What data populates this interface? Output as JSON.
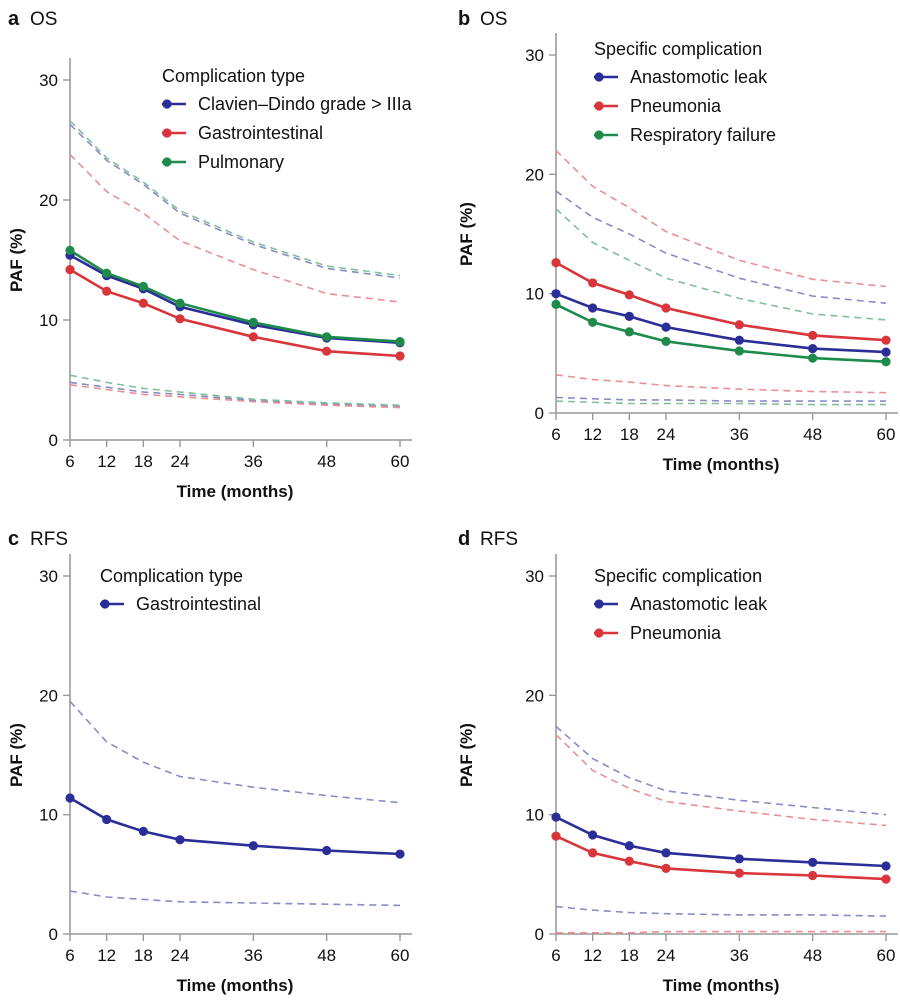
{
  "colors": {
    "blue": "#2b2e96",
    "red": "#d8363a",
    "green": "#1e8a4c",
    "axis": "#999999",
    "text": "#111111"
  },
  "chart_data": [
    {
      "type": "line",
      "panel_letter": "a",
      "panel_title": "OS",
      "legend_title": "Complication type",
      "xlabel": "Time (months)",
      "ylabel": "PAF (%)",
      "x": [
        6,
        12,
        18,
        24,
        36,
        48,
        60
      ],
      "xlim": [
        6,
        60
      ],
      "ylim": [
        0,
        30
      ],
      "yticks": [
        0,
        10,
        20,
        30
      ],
      "series": [
        {
          "name": "Clavien–Dindo grade > IIIa",
          "color": "#2b2e96",
          "values": [
            15.4,
            13.7,
            12.6,
            11.1,
            9.6,
            8.5,
            8.1
          ],
          "lower": [
            4.8,
            4.4,
            4.0,
            3.8,
            3.3,
            3.0,
            2.8
          ],
          "upper": [
            26.3,
            23.3,
            21.3,
            18.9,
            16.3,
            14.3,
            13.5
          ]
        },
        {
          "name": "Gastrointestinal",
          "color": "#d8363a",
          "values": [
            14.2,
            12.4,
            11.4,
            10.1,
            8.6,
            7.4,
            7.0
          ],
          "lower": [
            4.6,
            4.2,
            3.8,
            3.6,
            3.2,
            2.9,
            2.7
          ],
          "upper": [
            23.8,
            20.7,
            18.9,
            16.6,
            14.2,
            12.2,
            11.5
          ]
        },
        {
          "name": "Pulmonary",
          "color": "#1e8a4c",
          "values": [
            15.8,
            13.9,
            12.8,
            11.4,
            9.8,
            8.6,
            8.2
          ],
          "lower": [
            5.4,
            4.8,
            4.3,
            4.0,
            3.4,
            3.1,
            2.9
          ],
          "upper": [
            26.6,
            23.5,
            21.5,
            19.1,
            16.5,
            14.5,
            13.7
          ]
        }
      ]
    },
    {
      "type": "line",
      "panel_letter": "b",
      "panel_title": "OS",
      "legend_title": "Specific complication",
      "xlabel": "Time (months)",
      "ylabel": "PAF (%)",
      "x": [
        6,
        12,
        18,
        24,
        36,
        48,
        60
      ],
      "xlim": [
        6,
        60
      ],
      "ylim": [
        0,
        30
      ],
      "yticks": [
        0,
        10,
        20,
        30
      ],
      "series": [
        {
          "name": "Anastomotic leak",
          "color": "#2b2e96",
          "values": [
            10.0,
            8.8,
            8.1,
            7.2,
            6.1,
            5.4,
            5.1
          ],
          "lower": [
            1.3,
            1.2,
            1.1,
            1.1,
            1.0,
            1.0,
            1.0
          ],
          "upper": [
            18.6,
            16.4,
            15.0,
            13.4,
            11.3,
            9.8,
            9.2
          ]
        },
        {
          "name": "Pneumonia",
          "color": "#d8363a",
          "values": [
            12.6,
            10.9,
            9.9,
            8.8,
            7.4,
            6.5,
            6.1
          ],
          "lower": [
            3.2,
            2.8,
            2.6,
            2.3,
            2.0,
            1.8,
            1.7
          ],
          "upper": [
            22.0,
            19.0,
            17.2,
            15.2,
            12.8,
            11.2,
            10.6
          ]
        },
        {
          "name": "Respiratory failure",
          "color": "#1e8a4c",
          "values": [
            9.1,
            7.6,
            6.8,
            6.0,
            5.2,
            4.6,
            4.3
          ],
          "lower": [
            1.0,
            0.9,
            0.8,
            0.8,
            0.8,
            0.7,
            0.7
          ],
          "upper": [
            17.1,
            14.3,
            12.8,
            11.3,
            9.6,
            8.3,
            7.8
          ]
        }
      ]
    },
    {
      "type": "line",
      "panel_letter": "c",
      "panel_title": "RFS",
      "legend_title": "Complication type",
      "xlabel": "Time (months)",
      "ylabel": "PAF (%)",
      "x": [
        6,
        12,
        18,
        24,
        36,
        48,
        60
      ],
      "xlim": [
        6,
        60
      ],
      "ylim": [
        0,
        30
      ],
      "yticks": [
        0,
        10,
        20,
        30
      ],
      "series": [
        {
          "name": "Gastrointestinal",
          "color": "#2b2e96",
          "values": [
            11.4,
            9.6,
            8.6,
            7.9,
            7.4,
            7.0,
            6.7
          ],
          "lower": [
            3.6,
            3.1,
            2.9,
            2.7,
            2.6,
            2.5,
            2.4
          ],
          "upper": [
            19.5,
            16.1,
            14.4,
            13.2,
            12.3,
            11.6,
            11.0
          ]
        }
      ]
    },
    {
      "type": "line",
      "panel_letter": "d",
      "panel_title": "RFS",
      "legend_title": "Specific complication",
      "xlabel": "Time (months)",
      "ylabel": "PAF (%)",
      "x": [
        6,
        12,
        18,
        24,
        36,
        48,
        60
      ],
      "xlim": [
        6,
        60
      ],
      "ylim": [
        0,
        30
      ],
      "yticks": [
        0,
        10,
        20,
        30
      ],
      "series": [
        {
          "name": "Anastomotic leak",
          "color": "#2b2e96",
          "values": [
            9.8,
            8.3,
            7.4,
            6.8,
            6.3,
            6.0,
            5.7
          ],
          "lower": [
            2.3,
            2.0,
            1.8,
            1.7,
            1.6,
            1.6,
            1.5
          ],
          "upper": [
            17.4,
            14.7,
            13.1,
            12.0,
            11.2,
            10.6,
            10.0
          ]
        },
        {
          "name": "Pneumonia",
          "color": "#d8363a",
          "values": [
            8.2,
            6.8,
            6.1,
            5.5,
            5.1,
            4.9,
            4.6
          ],
          "lower": [
            0.1,
            0.1,
            0.1,
            0.2,
            0.2,
            0.2,
            0.2
          ],
          "upper": [
            16.7,
            13.7,
            12.2,
            11.1,
            10.3,
            9.6,
            9.1
          ]
        }
      ]
    }
  ]
}
